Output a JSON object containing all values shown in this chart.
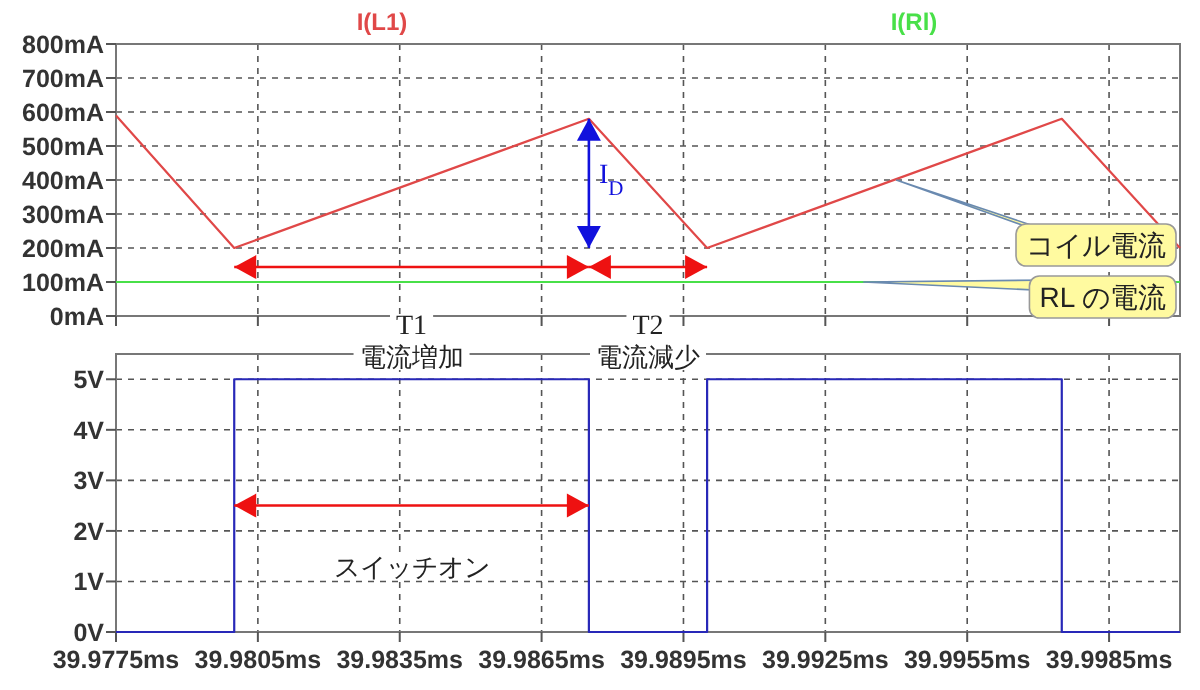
{
  "chart_data": [
    {
      "type": "line",
      "xlim": [
        39.9775,
        40.0
      ],
      "xticks": [
        {
          "value": 39.9775,
          "label": null
        },
        {
          "value": 39.9805,
          "label": null
        },
        {
          "value": 39.9835,
          "label": null
        },
        {
          "value": 39.9865,
          "label": null
        },
        {
          "value": 39.9895,
          "label": null
        },
        {
          "value": 39.9925,
          "label": null
        },
        {
          "value": 39.9955,
          "label": null
        },
        {
          "value": 39.9985,
          "label": null
        }
      ],
      "ylim": [
        0,
        800
      ],
      "yticks": [
        {
          "value": 0,
          "label": "0mA"
        },
        {
          "value": 100,
          "label": "100mA"
        },
        {
          "value": 200,
          "label": "200mA"
        },
        {
          "value": 300,
          "label": "300mA"
        },
        {
          "value": 400,
          "label": "400mA"
        },
        {
          "value": 500,
          "label": "500mA"
        },
        {
          "value": 600,
          "label": "600mA"
        },
        {
          "value": 700,
          "label": "700mA"
        },
        {
          "value": 800,
          "label": "800mA"
        }
      ],
      "tick_labels": "y",
      "grid": true,
      "legend": "top",
      "series": [
        {
          "name": "I(L1)",
          "color": "#e04848",
          "x": [
            39.9775,
            39.98,
            39.9875,
            39.99,
            39.9975,
            40.0
          ],
          "values": [
            590,
            200,
            580,
            200,
            580,
            200
          ]
        },
        {
          "name": "I(Rl)",
          "color": "#48e048",
          "x": [
            39.9775,
            40.0
          ],
          "values": [
            100,
            100
          ]
        }
      ],
      "annotations": [
        {
          "text": "コイル電流",
          "x": 39.994,
          "y": 400
        },
        {
          "text": "RL の電流",
          "x": 39.9933,
          "y": 100
        },
        "T1",
        "電流増加",
        "T2",
        "電流減少",
        "I$_{D}$"
      ]
    },
    {
      "type": "step",
      "xlim": [
        39.9775,
        40.0
      ],
      "xticks": [
        {
          "value": 39.9775,
          "label": "39.9775ms"
        },
        {
          "value": 39.9805,
          "label": "39.9805ms"
        },
        {
          "value": 39.9835,
          "label": "39.9835ms"
        },
        {
          "value": 39.9865,
          "label": "39.9865ms"
        },
        {
          "value": 39.9895,
          "label": "39.9895ms"
        },
        {
          "value": 39.9925,
          "label": "39.9925ms"
        },
        {
          "value": 39.9955,
          "label": "39.9955ms"
        },
        {
          "value": 39.9985,
          "label": "39.9985ms"
        }
      ],
      "ylim": [
        0,
        5.5
      ],
      "yticks": [
        {
          "value": 0,
          "label": "0V"
        },
        {
          "value": 1,
          "label": "1V"
        },
        {
          "value": 2,
          "label": "2V"
        },
        {
          "value": 3,
          "label": "3V"
        },
        {
          "value": 4,
          "label": "4V"
        },
        {
          "value": 5,
          "label": "5V"
        }
      ],
      "grid": true,
      "series": [
        {
          "color": "#2828b8",
          "x": [
            39.9775,
            39.98,
            39.9875,
            39.99,
            39.9975,
            40.0
          ],
          "values": [
            0,
            5,
            0,
            5,
            0,
            0
          ]
        }
      ],
      "annotations": [
        "スイッチオン"
      ]
    }
  ]
}
